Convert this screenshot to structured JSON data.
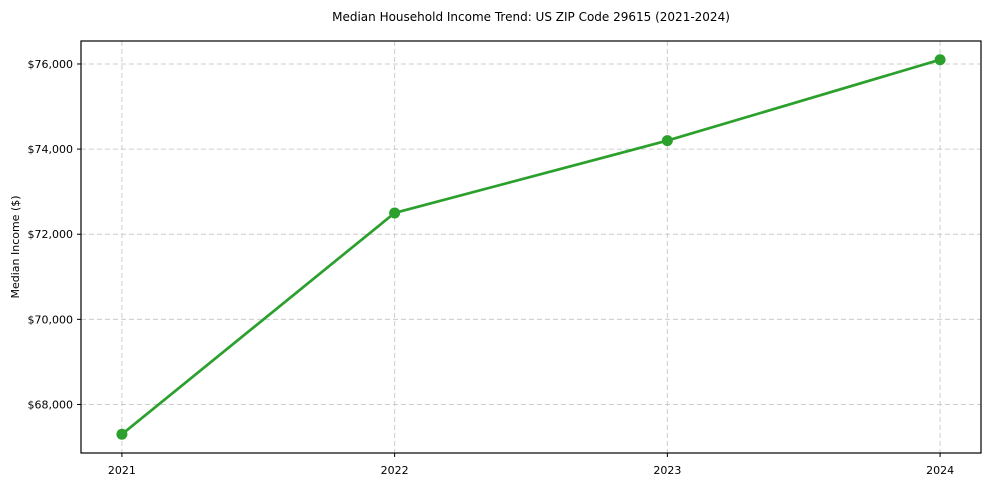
{
  "chart_data": {
    "type": "line",
    "title": "Median Household Income Trend: US ZIP Code 29615 (2021-2024)",
    "xlabel": "",
    "ylabel": "Median Income ($)",
    "x": [
      2021,
      2022,
      2023,
      2024
    ],
    "x_tick_labels": [
      "2021",
      "2022",
      "2023",
      "2024"
    ],
    "series": [
      {
        "name": "Median Household Income",
        "values": [
          67300,
          72500,
          74200,
          76100
        ]
      }
    ],
    "y_ticks": [
      68000,
      70000,
      72000,
      74000,
      76000
    ],
    "y_tick_labels": [
      "$68,000",
      "$70,000",
      "$72,000",
      "$74,000",
      "$76,000"
    ],
    "xlim": [
      2020.85,
      2024.15
    ],
    "ylim": [
      66860,
      76540
    ],
    "grid": "both, dashed",
    "legend": "none",
    "marker": "circle",
    "colors": {
      "line": "#2ca02c",
      "marker": "#2ca02c",
      "grid": "#cccccc",
      "spine": "#000000",
      "text": "#000000",
      "background": "#ffffff"
    }
  }
}
